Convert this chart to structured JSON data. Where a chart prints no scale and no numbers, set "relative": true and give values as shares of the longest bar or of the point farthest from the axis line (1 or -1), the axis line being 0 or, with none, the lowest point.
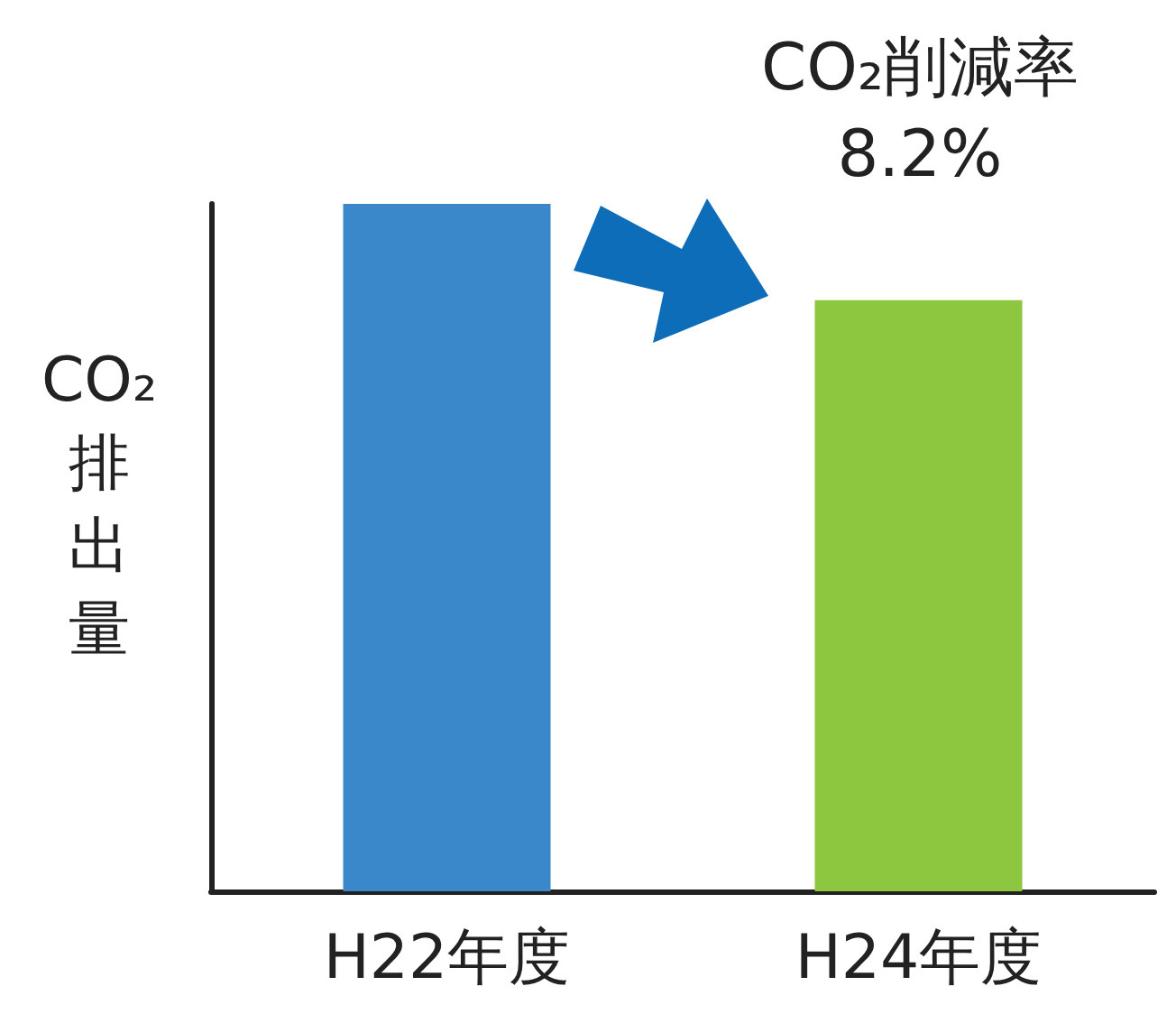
{
  "chart_data": {
    "type": "bar",
    "relative": true,
    "categories": [
      "H22年度",
      "H24年度"
    ],
    "values": [
      1,
      0.86
    ],
    "colors": [
      "#3a87c9",
      "#8dc63f"
    ],
    "ylabel": "CO₂排出量",
    "annotations": [
      "CO₂削減率\n8.2%"
    ],
    "grid": false
  }
}
